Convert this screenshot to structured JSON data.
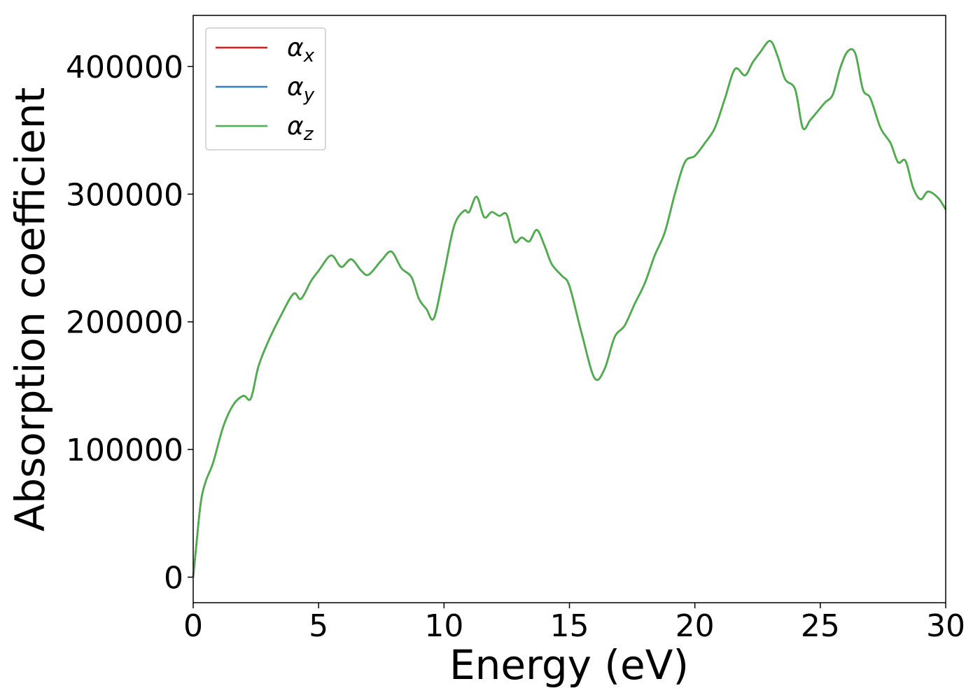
{
  "chart_data": {
    "type": "line",
    "xlabel": "Energy (eV)",
    "ylabel": "Absorption coefficient",
    "xlim": [
      0,
      30
    ],
    "ylim": [
      -20000,
      440000
    ],
    "xticks": [
      0,
      5,
      10,
      15,
      20,
      25,
      30
    ],
    "xtick_labels": [
      "0",
      "5",
      "10",
      "15",
      "20",
      "25",
      "30"
    ],
    "yticks": [
      0,
      100000,
      200000,
      300000,
      400000
    ],
    "ytick_labels": [
      "0",
      "100000",
      "200000",
      "300000",
      "400000"
    ],
    "grid": false,
    "legend_position": "top-left",
    "x": [
      0,
      0.1,
      0.3,
      0.5,
      0.8,
      1.2,
      1.6,
      2.0,
      2.3,
      2.6,
      3.0,
      3.5,
      4.0,
      4.3,
      4.7,
      5.0,
      5.5,
      5.9,
      6.3,
      6.7,
      7.0,
      7.5,
      7.9,
      8.3,
      8.7,
      9.0,
      9.3,
      9.6,
      10.0,
      10.4,
      10.8,
      11.0,
      11.3,
      11.6,
      11.9,
      12.2,
      12.5,
      12.8,
      13.1,
      13.4,
      13.7,
      14.0,
      14.3,
      14.7,
      15.0,
      15.5,
      16.0,
      16.4,
      16.8,
      17.2,
      17.6,
      18.0,
      18.4,
      18.8,
      19.2,
      19.6,
      20.0,
      20.4,
      20.8,
      21.2,
      21.6,
      22.0,
      22.3,
      22.6,
      23.0,
      23.3,
      23.6,
      24.0,
      24.3,
      24.6,
      24.9,
      25.2,
      25.5,
      25.8,
      26.1,
      26.4,
      26.7,
      27.0,
      27.4,
      27.8,
      28.1,
      28.4,
      28.7,
      29.0,
      29.3,
      29.7,
      30.0
    ],
    "series": [
      {
        "name": "x",
        "color": "#e41a1c",
        "values": [
          0,
          20000,
          58000,
          75000,
          90000,
          118000,
          135000,
          142000,
          140000,
          165000,
          185000,
          205000,
          222000,
          218000,
          232000,
          240000,
          252000,
          243000,
          249000,
          240000,
          237000,
          248000,
          255000,
          242000,
          235000,
          218000,
          210000,
          203000,
          238000,
          275000,
          287000,
          286000,
          298000,
          282000,
          286000,
          283000,
          284000,
          263000,
          266000,
          263000,
          272000,
          260000,
          245000,
          236000,
          228000,
          190000,
          156000,
          163000,
          188000,
          197000,
          214000,
          230000,
          252000,
          270000,
          300000,
          325000,
          330000,
          340000,
          352000,
          375000,
          398000,
          393000,
          403000,
          411000,
          420000,
          408000,
          390000,
          382000,
          352000,
          358000,
          365000,
          372000,
          378000,
          399000,
          412000,
          410000,
          382000,
          375000,
          352000,
          340000,
          325000,
          326000,
          305000,
          296000,
          302000,
          297000,
          288000
        ]
      },
      {
        "name": "y",
        "color": "#377eb8",
        "values": [
          0,
          20000,
          58000,
          75000,
          90000,
          118000,
          135000,
          142000,
          140000,
          165000,
          185000,
          205000,
          222000,
          218000,
          232000,
          240000,
          252000,
          243000,
          249000,
          240000,
          237000,
          248000,
          255000,
          242000,
          235000,
          218000,
          210000,
          203000,
          238000,
          275000,
          287000,
          286000,
          298000,
          282000,
          286000,
          283000,
          284000,
          263000,
          266000,
          263000,
          272000,
          260000,
          245000,
          236000,
          228000,
          190000,
          156000,
          163000,
          188000,
          197000,
          214000,
          230000,
          252000,
          270000,
          300000,
          325000,
          330000,
          340000,
          352000,
          375000,
          398000,
          393000,
          403000,
          411000,
          420000,
          408000,
          390000,
          382000,
          352000,
          358000,
          365000,
          372000,
          378000,
          399000,
          412000,
          410000,
          382000,
          375000,
          352000,
          340000,
          325000,
          326000,
          305000,
          296000,
          302000,
          297000,
          288000
        ]
      },
      {
        "name": "z",
        "color": "#4daf4a",
        "values": [
          0,
          20000,
          58000,
          75000,
          90000,
          118000,
          135000,
          142000,
          140000,
          165000,
          185000,
          205000,
          222000,
          218000,
          232000,
          240000,
          252000,
          243000,
          249000,
          240000,
          237000,
          248000,
          255000,
          242000,
          235000,
          218000,
          210000,
          203000,
          238000,
          275000,
          287000,
          286000,
          298000,
          282000,
          286000,
          283000,
          284000,
          263000,
          266000,
          263000,
          272000,
          260000,
          245000,
          236000,
          228000,
          190000,
          156000,
          163000,
          188000,
          197000,
          214000,
          230000,
          252000,
          270000,
          300000,
          325000,
          330000,
          340000,
          352000,
          375000,
          398000,
          393000,
          403000,
          411000,
          420000,
          408000,
          390000,
          382000,
          352000,
          358000,
          365000,
          372000,
          378000,
          399000,
          412000,
          410000,
          382000,
          375000,
          352000,
          340000,
          325000,
          326000,
          305000,
          296000,
          302000,
          297000,
          288000
        ]
      }
    ]
  },
  "legend": {
    "symbol": "α",
    "entries": [
      {
        "sub": "x",
        "color": "#e41a1c"
      },
      {
        "sub": "y",
        "color": "#377eb8"
      },
      {
        "sub": "z",
        "color": "#4daf4a"
      }
    ]
  }
}
